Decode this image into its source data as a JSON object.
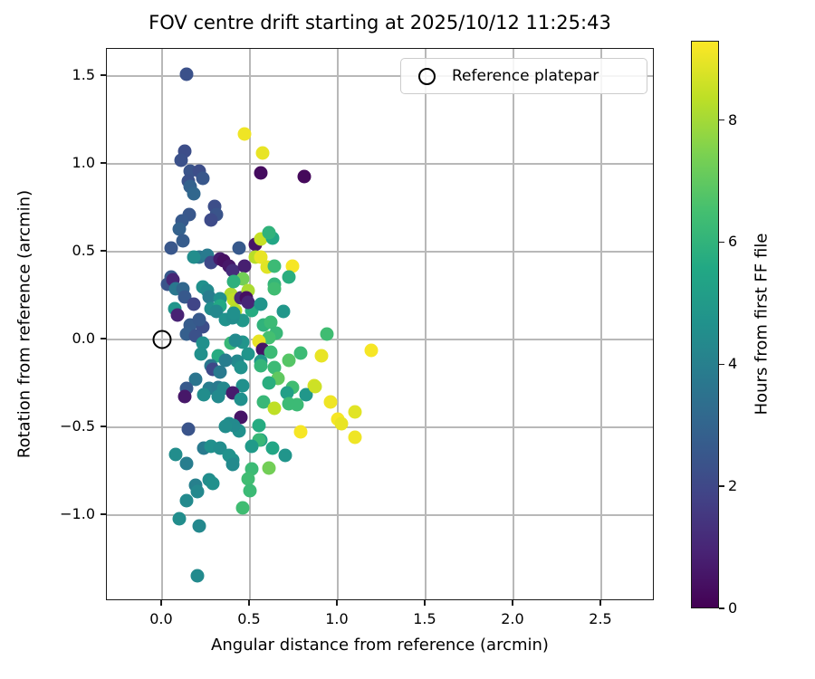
{
  "chart_data": {
    "type": "scatter",
    "title": "FOV centre drift starting at 2025/10/12 11:25:43",
    "xlabel": "Angular distance from reference (arcmin)",
    "ylabel": "Rotation from reference (arcmin)",
    "xlim": [
      -0.314,
      2.804
    ],
    "ylim": [
      -1.49,
      1.655
    ],
    "grid": true,
    "xticks": {
      "values": [
        0.0,
        0.5,
        1.0,
        1.5,
        2.0,
        2.5
      ],
      "labels": [
        "0.0",
        "0.5",
        "1.0",
        "1.5",
        "2.0",
        "2.5"
      ]
    },
    "yticks": {
      "values": [
        1.5,
        1.0,
        0.5,
        0.0,
        -0.5,
        -1.0
      ],
      "labels": [
        "1.5",
        "1.0",
        "0.5",
        "0.0",
        "−0.5",
        "−1.0"
      ]
    },
    "legend": {
      "label": "Reference platepar",
      "position": "upper right"
    },
    "reference_point": {
      "x": 0.0,
      "y": 0.0
    },
    "colorbar": {
      "label": "Hours from first FF file",
      "vmin": 0,
      "vmax": 9.3,
      "ticks": [
        0,
        2,
        4,
        6,
        8
      ],
      "colormap": "viridis"
    },
    "colormap_stops": [
      "#440154",
      "#482475",
      "#414487",
      "#355f8d",
      "#2a788e",
      "#21918c",
      "#22a884",
      "#44bf70",
      "#7ad151",
      "#bddf26",
      "#fde725"
    ],
    "points": [
      [
        0.14,
        1.51,
        2.3
      ],
      [
        0.47,
        1.17,
        9.1
      ],
      [
        0.57,
        1.06,
        9.0
      ],
      [
        0.56,
        0.95,
        0.3
      ],
      [
        0.81,
        0.93,
        0.2
      ],
      [
        0.13,
        1.07,
        2.2
      ],
      [
        0.11,
        1.02,
        2.3
      ],
      [
        0.16,
        0.96,
        2.4
      ],
      [
        0.21,
        0.96,
        2.2
      ],
      [
        0.23,
        0.92,
        2.5
      ],
      [
        0.15,
        0.9,
        2.3
      ],
      [
        0.16,
        0.87,
        2.9
      ],
      [
        0.18,
        0.83,
        3.1
      ],
      [
        0.3,
        0.76,
        2.2
      ],
      [
        0.31,
        0.71,
        2.4
      ],
      [
        0.28,
        0.68,
        2.1
      ],
      [
        0.155,
        0.71,
        2.5
      ],
      [
        0.115,
        0.675,
        2.6
      ],
      [
        0.1,
        0.63,
        2.9
      ],
      [
        0.12,
        0.56,
        2.7
      ],
      [
        0.05,
        0.52,
        2.5
      ],
      [
        0.44,
        0.52,
        2.6
      ],
      [
        0.21,
        0.47,
        3.6
      ],
      [
        0.26,
        0.48,
        3.8
      ],
      [
        0.18,
        0.47,
        4.5
      ],
      [
        0.28,
        0.44,
        2.0
      ],
      [
        0.33,
        0.46,
        0.7
      ],
      [
        0.35,
        0.45,
        0.4
      ],
      [
        0.38,
        0.42,
        0.6
      ],
      [
        0.4,
        0.39,
        1.2
      ],
      [
        0.47,
        0.42,
        0.8
      ],
      [
        0.53,
        0.54,
        0.5
      ],
      [
        0.56,
        0.57,
        8.5
      ],
      [
        0.53,
        0.47,
        8.3
      ],
      [
        0.56,
        0.47,
        9.0
      ],
      [
        0.6,
        0.41,
        8.9
      ],
      [
        0.64,
        0.42,
        6.3
      ],
      [
        0.74,
        0.42,
        9.2
      ],
      [
        0.72,
        0.355,
        5.8
      ],
      [
        0.64,
        0.314,
        6.1
      ],
      [
        0.63,
        0.58,
        5.5
      ],
      [
        0.61,
        0.61,
        6.0
      ],
      [
        0.46,
        0.345,
        7.3
      ],
      [
        0.39,
        0.26,
        8.2
      ],
      [
        0.41,
        0.227,
        8.4
      ],
      [
        0.45,
        0.237,
        1.1
      ],
      [
        0.42,
        0.165,
        8.3
      ],
      [
        0.51,
        0.165,
        5.7
      ],
      [
        0.49,
        0.28,
        8.1
      ],
      [
        0.48,
        0.235,
        0.4
      ],
      [
        0.64,
        0.29,
        6.4
      ],
      [
        0.49,
        0.21,
        1.0
      ],
      [
        0.56,
        0.2,
        4.8
      ],
      [
        0.41,
        0.33,
        5.9
      ],
      [
        0.05,
        0.355,
        2.6
      ],
      [
        0.03,
        0.314,
        2.4
      ],
      [
        0.06,
        0.34,
        1.0
      ],
      [
        0.08,
        0.29,
        3.7
      ],
      [
        0.12,
        0.29,
        3.1
      ],
      [
        0.13,
        0.24,
        2.6
      ],
      [
        0.23,
        0.3,
        4.6
      ],
      [
        0.26,
        0.28,
        4.4
      ],
      [
        0.27,
        0.24,
        3.9
      ],
      [
        0.33,
        0.23,
        4.6
      ],
      [
        0.18,
        0.2,
        1.9
      ],
      [
        0.07,
        0.175,
        4.8
      ],
      [
        0.09,
        0.14,
        0.9
      ],
      [
        0.28,
        0.175,
        4.5
      ],
      [
        0.33,
        0.19,
        5.6
      ],
      [
        0.31,
        0.159,
        4.3
      ],
      [
        0.36,
        0.113,
        4.7
      ],
      [
        0.46,
        0.108,
        4.9
      ],
      [
        0.4,
        0.123,
        4.5
      ],
      [
        0.41,
        0.149,
        4.6
      ],
      [
        0.16,
        0.082,
        2.7
      ],
      [
        0.23,
        0.072,
        2.2
      ],
      [
        0.21,
        0.113,
        2.6
      ],
      [
        0.14,
        0.03,
        2.8
      ],
      [
        0.19,
        0.02,
        2.3
      ],
      [
        0.58,
        0.082,
        6.0
      ],
      [
        0.69,
        0.159,
        4.9
      ],
      [
        0.62,
        0.097,
        6.3
      ],
      [
        0.65,
        0.036,
        6.2
      ],
      [
        0.61,
        0.01,
        6.5
      ],
      [
        0.94,
        0.03,
        6.4
      ],
      [
        0.23,
        -0.02,
        4.6
      ],
      [
        0.39,
        -0.02,
        6.2
      ],
      [
        0.46,
        -0.015,
        4.8
      ],
      [
        0.55,
        -0.01,
        9.0
      ],
      [
        0.42,
        -0.005,
        4.4
      ],
      [
        0.57,
        -0.056,
        0.5
      ],
      [
        0.22,
        -0.082,
        4.6
      ],
      [
        0.32,
        -0.092,
        5.7
      ],
      [
        0.49,
        -0.082,
        4.8
      ],
      [
        0.62,
        -0.072,
        6.3
      ],
      [
        0.79,
        -0.077,
        6.3
      ],
      [
        0.91,
        -0.092,
        9.0
      ],
      [
        1.19,
        -0.062,
        9.2
      ],
      [
        0.72,
        -0.118,
        6.8
      ],
      [
        0.56,
        -0.123,
        4.9
      ],
      [
        0.43,
        -0.124,
        4.4
      ],
      [
        0.36,
        -0.118,
        3.9
      ],
      [
        0.56,
        -0.147,
        6.1
      ],
      [
        0.64,
        -0.16,
        6.3
      ],
      [
        0.45,
        -0.159,
        4.7
      ],
      [
        0.28,
        -0.149,
        3.7
      ],
      [
        0.29,
        -0.169,
        2.0
      ],
      [
        0.33,
        -0.185,
        3.8
      ],
      [
        0.66,
        -0.22,
        7.0
      ],
      [
        0.19,
        -0.226,
        3.6
      ],
      [
        0.61,
        -0.246,
        5.8
      ],
      [
        0.865,
        -0.265,
        8.8
      ],
      [
        0.74,
        -0.273,
        6.4
      ],
      [
        0.14,
        -0.277,
        2.6
      ],
      [
        0.27,
        -0.277,
        3.9
      ],
      [
        0.32,
        -0.272,
        3.8
      ],
      [
        0.35,
        -0.278,
        4.3
      ],
      [
        0.46,
        -0.262,
        4.6
      ],
      [
        0.13,
        -0.323,
        0.6
      ],
      [
        0.24,
        -0.313,
        4.5
      ],
      [
        0.4,
        -0.304,
        0.7
      ],
      [
        0.32,
        -0.325,
        4.4
      ],
      [
        0.71,
        -0.304,
        5.2
      ],
      [
        0.82,
        -0.313,
        4.9
      ],
      [
        0.45,
        -0.34,
        4.6
      ],
      [
        0.87,
        -0.268,
        8.6
      ],
      [
        0.58,
        -0.356,
        6.2
      ],
      [
        0.64,
        -0.392,
        8.4
      ],
      [
        0.72,
        -0.366,
        6.3
      ],
      [
        0.77,
        -0.37,
        6.3
      ],
      [
        0.96,
        -0.356,
        9.1
      ],
      [
        1.1,
        -0.412,
        8.9
      ],
      [
        1.0,
        -0.454,
        9.2
      ],
      [
        1.02,
        -0.479,
        9.0
      ],
      [
        0.45,
        -0.443,
        0.5
      ],
      [
        0.38,
        -0.477,
        4.5
      ],
      [
        0.15,
        -0.508,
        2.4
      ],
      [
        0.44,
        -0.52,
        4.6
      ],
      [
        0.41,
        -0.49,
        4.4
      ],
      [
        0.36,
        -0.495,
        4.5
      ],
      [
        0.55,
        -0.49,
        5.7
      ],
      [
        0.56,
        -0.57,
        5.3
      ],
      [
        0.79,
        -0.528,
        9.2
      ],
      [
        1.1,
        -0.557,
        9.1
      ],
      [
        0.55,
        -0.572,
        6.2
      ],
      [
        0.51,
        -0.61,
        5.0
      ],
      [
        0.63,
        -0.62,
        5.5
      ],
      [
        0.7,
        -0.66,
        4.8
      ],
      [
        0.61,
        -0.73,
        7.3
      ],
      [
        0.51,
        -0.737,
        6.3
      ],
      [
        0.49,
        -0.794,
        6.4
      ],
      [
        0.5,
        -0.86,
        6.3
      ],
      [
        0.46,
        -0.96,
        6.4
      ],
      [
        0.4,
        -0.686,
        4.6
      ],
      [
        0.08,
        -0.656,
        4.5
      ],
      [
        0.14,
        -0.708,
        3.9
      ],
      [
        0.24,
        -0.62,
        3.8
      ],
      [
        0.28,
        -0.61,
        4.6
      ],
      [
        0.33,
        -0.62,
        4.5
      ],
      [
        0.38,
        -0.662,
        4.7
      ],
      [
        0.4,
        -0.713,
        4.4
      ],
      [
        0.27,
        -0.8,
        4.5
      ],
      [
        0.29,
        -0.82,
        4.6
      ],
      [
        0.19,
        -0.83,
        4.0
      ],
      [
        0.2,
        -0.866,
        4.3
      ],
      [
        0.14,
        -0.92,
        4.4
      ],
      [
        0.1,
        -1.02,
        4.5
      ],
      [
        0.21,
        -1.06,
        4.3
      ],
      [
        0.2,
        -1.344,
        4.4
      ]
    ]
  }
}
